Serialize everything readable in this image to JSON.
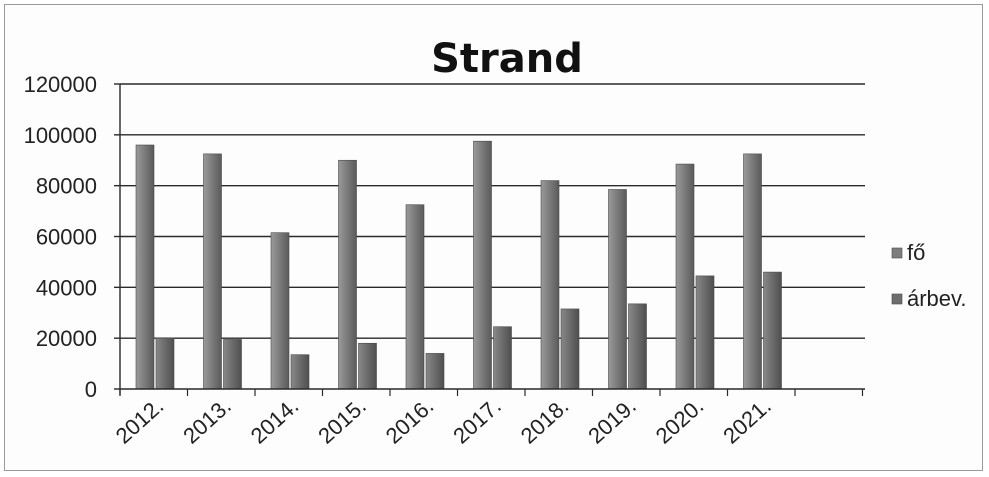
{
  "chart_data": {
    "type": "bar",
    "title": "Strand",
    "categories": [
      "2012.",
      "2013.",
      "2014.",
      "2015.",
      "2016.",
      "2017.",
      "2018.",
      "2019.",
      "2020.",
      "2021."
    ],
    "series": [
      {
        "name": "fő",
        "values": [
          96000,
          92500,
          61500,
          90000,
          72500,
          97500,
          82000,
          78500,
          88500,
          92500
        ],
        "color": "#7d7d7d"
      },
      {
        "name": "árbev.",
        "values": [
          20000,
          19500,
          13500,
          18000,
          14000,
          24500,
          31500,
          33500,
          44500,
          46000
        ],
        "color": "#6e6e6e"
      }
    ],
    "ylim": [
      0,
      120000
    ],
    "yticks": [
      "0",
      "20000",
      "40000",
      "60000",
      "80000",
      "100000",
      "120000"
    ],
    "grid": true,
    "legend_position": "right"
  }
}
